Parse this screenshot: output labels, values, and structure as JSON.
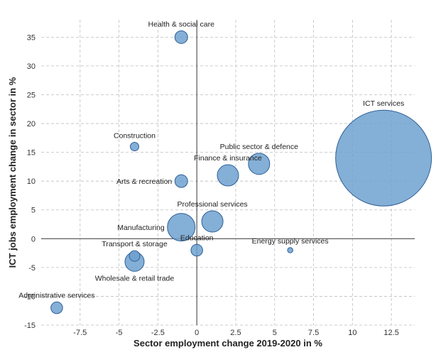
{
  "chart_data": {
    "type": "scatter",
    "title": "",
    "xlabel": "Sector employment change 2019-2020 in %",
    "ylabel": "ICT jobs employment change in sector in %",
    "xlim": [
      -10,
      14
    ],
    "ylim": [
      -15,
      38
    ],
    "x_ticks": [
      -7.5,
      -5,
      -2.5,
      0,
      2.5,
      5,
      7.5,
      10,
      12.5
    ],
    "y_ticks": [
      -15,
      -10,
      -5,
      0,
      5,
      10,
      15,
      20,
      25,
      30,
      35
    ],
    "x_tick_labels": [
      "-7.5",
      "-5",
      "-2.5",
      "0",
      "2.5",
      "5",
      "7.5",
      "10",
      "12.5"
    ],
    "y_tick_labels": [
      "-15",
      "-10",
      "-5",
      "0",
      "5",
      "10",
      "15",
      "20",
      "25",
      "30",
      "35"
    ],
    "grid": true,
    "bubble_color": "#6fa1cf",
    "bubble_stroke": "#2e5f97",
    "points": [
      {
        "label": "Health & social care",
        "x": -1,
        "y": 35,
        "size": 1.2
      },
      {
        "label": "Construction",
        "x": -4,
        "y": 16,
        "size": 0.8
      },
      {
        "label": "Arts & recreation",
        "x": -1,
        "y": 10,
        "size": 1.2
      },
      {
        "label": "Public sector & defence",
        "x": 4,
        "y": 13,
        "size": 2.0
      },
      {
        "label": "Finance & insurance",
        "x": 2,
        "y": 11,
        "size": 2.0
      },
      {
        "label": "ICT services",
        "x": 12,
        "y": 14,
        "size": 9.0
      },
      {
        "label": "Professional services",
        "x": 1,
        "y": 3,
        "size": 2.0
      },
      {
        "label": "Manufacturing",
        "x": -1,
        "y": 2,
        "size": 2.6
      },
      {
        "label": "Education",
        "x": 0,
        "y": -2,
        "size": 1.1
      },
      {
        "label": "Energy supply services",
        "x": 6,
        "y": -2,
        "size": 0.5
      },
      {
        "label": "Transport & storage",
        "x": -4,
        "y": -3,
        "size": 1.0
      },
      {
        "label": "Wholesale & retail trade",
        "x": -4,
        "y": -4,
        "size": 1.8
      },
      {
        "label": "Administrative services",
        "x": -9,
        "y": -12,
        "size": 1.1
      }
    ]
  }
}
